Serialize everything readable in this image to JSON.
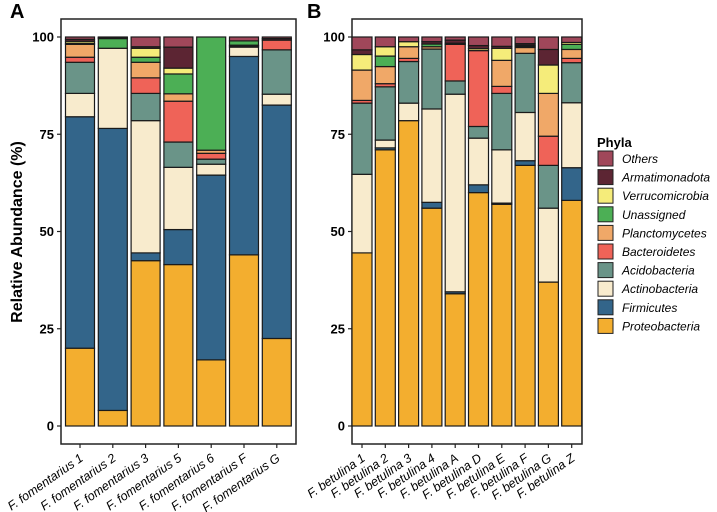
{
  "chart_data": [
    {
      "type": "bar",
      "stacked": true,
      "panel_label": "A",
      "ylabel": "Relative Abundance (%)",
      "ylim": [
        0,
        100
      ],
      "yticks": [
        "0",
        "25",
        "50",
        "75",
        "100"
      ],
      "categories": [
        "F. fomentarius 1",
        "F. fomentarius 2",
        "F. fomentarius 3",
        "F. fomentarius 5",
        "F. fomentarius 6",
        "F. fomentarius F",
        "F. fomentarius G"
      ],
      "series": [
        {
          "name": "Proteobacteria",
          "values": [
            20,
            4,
            42.5,
            41.5,
            17,
            44,
            22.5
          ]
        },
        {
          "name": "Firmicutes",
          "values": [
            59.5,
            72.5,
            2,
            9,
            47.5,
            51,
            60
          ]
        },
        {
          "name": "Actinobacteria",
          "values": [
            6,
            20.6,
            34,
            16,
            2.8,
            2.4,
            2.8
          ]
        },
        {
          "name": "Acidobacteria",
          "values": [
            8,
            0,
            7,
            6.5,
            1.3,
            0.3,
            11.4
          ]
        },
        {
          "name": "Bacteroidetes",
          "values": [
            1.3,
            0,
            4,
            10.5,
            1.5,
            0.2,
            2.5
          ]
        },
        {
          "name": "Planctomycetes",
          "values": [
            3.3,
            0,
            4,
            1.9,
            0.8,
            0,
            0
          ]
        },
        {
          "name": "Unassigned",
          "values": [
            0.3,
            2.5,
            1.3,
            5.1,
            29.1,
            1.1,
            0
          ]
        },
        {
          "name": "Verrucomicrobia",
          "values": [
            0.5,
            0.3,
            2.3,
            1.5,
            0,
            0,
            0
          ]
        },
        {
          "name": "Armatimonadota",
          "values": [
            0.5,
            0,
            0.4,
            5.4,
            0,
            0,
            0.4
          ]
        },
        {
          "name": "Others",
          "values": [
            0.6,
            0.1,
            2.5,
            2.6,
            0,
            1.0,
            0.4
          ]
        }
      ]
    },
    {
      "type": "bar",
      "stacked": true,
      "panel_label": "B",
      "ylabel": "",
      "ylim": [
        0,
        100
      ],
      "yticks": [
        "0",
        "25",
        "50",
        "75",
        "100"
      ],
      "categories": [
        "F. betulina 1",
        "F. betulina 2",
        "F. betulina 3",
        "F. betulina 4",
        "F. betulina A",
        "F. betulina D",
        "F. betulina E",
        "F. betulina F",
        "F. betulina G",
        "F. betulina Z"
      ],
      "series": [
        {
          "name": "Proteobacteria",
          "values": [
            44.5,
            71,
            78.5,
            56,
            34,
            60,
            57,
            67,
            37,
            58
          ]
        },
        {
          "name": "Firmicutes",
          "values": [
            0,
            0.5,
            0,
            1.5,
            0.5,
            2,
            0.3,
            1.2,
            0,
            8.4
          ]
        },
        {
          "name": "Actinobacteria",
          "values": [
            20.2,
            2,
            4.5,
            24,
            50.8,
            12,
            13.7,
            12.4,
            19,
            16.7
          ]
        },
        {
          "name": "Acidobacteria",
          "values": [
            18.3,
            13.7,
            10.7,
            15.4,
            3.4,
            3,
            14.5,
            15.2,
            11,
            10.3
          ]
        },
        {
          "name": "Bacteroidetes",
          "values": [
            0.7,
            0.8,
            0.8,
            0,
            9.4,
            19.5,
            1.8,
            0,
            7.5,
            1.1
          ]
        },
        {
          "name": "Planctomycetes",
          "values": [
            7.8,
            4.4,
            3,
            0.6,
            0,
            0,
            6.7,
            1.5,
            11,
            2.3
          ]
        },
        {
          "name": "Unassigned",
          "values": [
            0,
            2.7,
            0,
            0.7,
            0.3,
            0,
            0,
            0.3,
            0,
            1.3
          ]
        },
        {
          "name": "Verrucomicrobia",
          "values": [
            4,
            2.4,
            1.3,
            0,
            0,
            0.5,
            3.1,
            0.3,
            7.3,
            0.5
          ]
        },
        {
          "name": "Armatimonadota",
          "values": [
            1.2,
            0,
            0,
            0.6,
            0.8,
            0.8,
            0.5,
            0.4,
            4,
            0
          ]
        },
        {
          "name": "Others",
          "values": [
            3.3,
            2.5,
            1.2,
            1.2,
            0.8,
            2.2,
            2.4,
            1.7,
            3.2,
            1.4
          ]
        }
      ]
    }
  ],
  "legend": {
    "title": "Phyla",
    "placement": "right",
    "items": [
      {
        "name": "Others",
        "color": "#a0475a"
      },
      {
        "name": "Armatimonadota",
        "color": "#5c2533"
      },
      {
        "name": "Verrucomicrobia",
        "color": "#f5ec7a"
      },
      {
        "name": "Unassigned",
        "color": "#4caf55"
      },
      {
        "name": "Planctomycetes",
        "color": "#f0a868"
      },
      {
        "name": "Bacteroidetes",
        "color": "#ef6358"
      },
      {
        "name": "Acidobacteria",
        "color": "#6a9488"
      },
      {
        "name": "Actinobacteria",
        "color": "#f8ebcd"
      },
      {
        "name": "Firmicutes",
        "color": "#33658a"
      },
      {
        "name": "Proteobacteria",
        "color": "#f3ae2f"
      }
    ]
  }
}
